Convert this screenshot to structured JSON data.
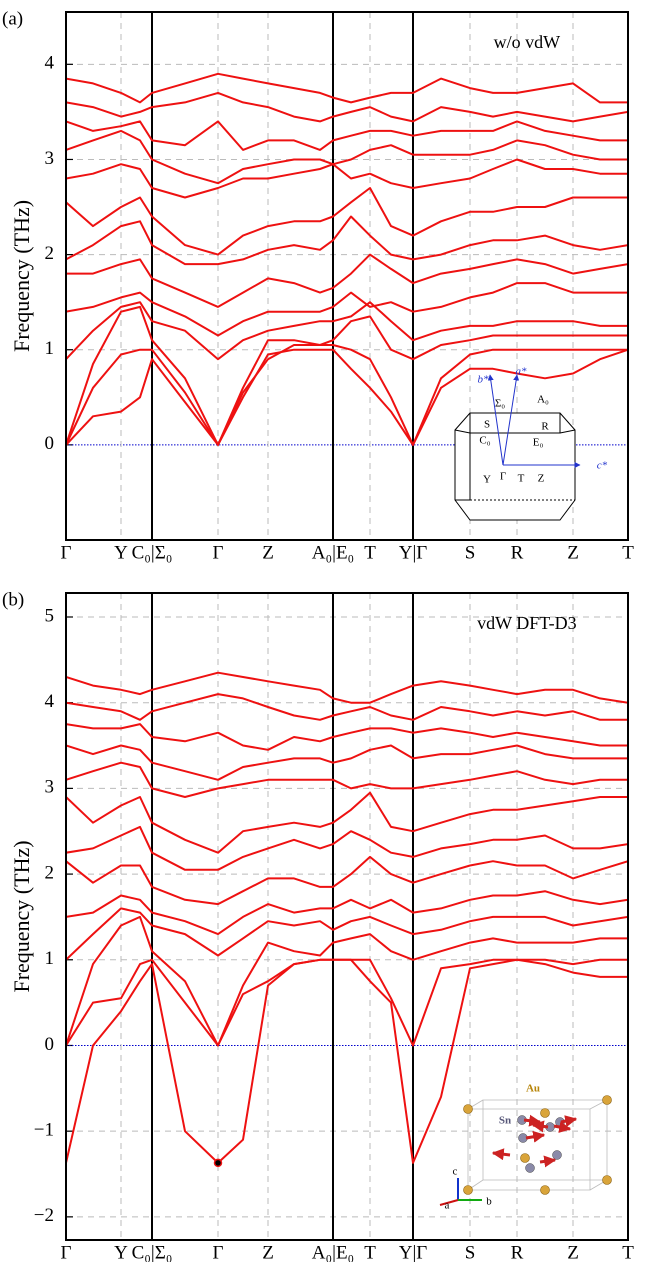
{
  "chart_data": [
    {
      "type": "line",
      "label": "(a)",
      "annotation": "w/o vdW",
      "ylabel": "Frequency (THz)",
      "color": "#ee1111",
      "zero_line_color": "#0000cc",
      "grid": true,
      "x": [
        0,
        27,
        55,
        74,
        86,
        119,
        152,
        177,
        202,
        228,
        254,
        267,
        285,
        304,
        325,
        347,
        375,
        404,
        427,
        451,
        479,
        507,
        534,
        562
      ],
      "xlim": [
        0,
        562
      ],
      "xticks": [
        {
          "value": 0,
          "label": "Γ"
        },
        {
          "value": 55,
          "label": "Y"
        },
        {
          "value": 86,
          "label": "C₀|Σ₀"
        },
        {
          "value": 152,
          "label": "Γ"
        },
        {
          "value": 202,
          "label": "Z"
        },
        {
          "value": 267,
          "label": "A₀|E₀"
        },
        {
          "value": 304,
          "label": "T"
        },
        {
          "value": 347,
          "label": "Y|Γ"
        },
        {
          "value": 404,
          "label": "S"
        },
        {
          "value": 451,
          "label": "R"
        },
        {
          "value": 507,
          "label": "Z"
        },
        {
          "value": 562,
          "label": "T"
        }
      ],
      "ylim": [
        -1,
        4.55
      ],
      "yticks": [
        0,
        1,
        2,
        3,
        4
      ],
      "series": [
        {
          "values": [
            0,
            0.3,
            0.35,
            0.5,
            0.9,
            0.45,
            0,
            0.5,
            0.95,
            1.0,
            1.0,
            1.0,
            0.8,
            0.6,
            0.35,
            0,
            0.6,
            0.8,
            0.8,
            0.75,
            0.7,
            0.75,
            0.9,
            1.0
          ]
        },
        {
          "values": [
            0,
            0.6,
            0.95,
            1.0,
            1.0,
            0.55,
            0,
            0.55,
            0.9,
            1.05,
            1.05,
            1.05,
            1.0,
            0.9,
            0.5,
            0,
            0.7,
            0.95,
            1.0,
            1.0,
            1.0,
            1.0,
            1.0,
            1.0
          ]
        },
        {
          "values": [
            0,
            0.85,
            1.4,
            1.45,
            1.1,
            0.7,
            0,
            0.6,
            1.1,
            1.1,
            1.05,
            1.1,
            1.3,
            1.35,
            1.0,
            0.9,
            1.05,
            1.1,
            1.15,
            1.15,
            1.15,
            1.15,
            1.15,
            1.15
          ]
        },
        {
          "values": [
            0.9,
            1.2,
            1.45,
            1.5,
            1.3,
            1.2,
            0.9,
            1.1,
            1.2,
            1.25,
            1.3,
            1.3,
            1.35,
            1.5,
            1.3,
            1.1,
            1.2,
            1.25,
            1.25,
            1.3,
            1.3,
            1.3,
            1.25,
            1.25
          ]
        },
        {
          "values": [
            1.4,
            1.45,
            1.55,
            1.6,
            1.5,
            1.35,
            1.15,
            1.3,
            1.4,
            1.4,
            1.4,
            1.45,
            1.6,
            1.45,
            1.5,
            1.4,
            1.45,
            1.55,
            1.6,
            1.7,
            1.7,
            1.6,
            1.6,
            1.6
          ]
        },
        {
          "values": [
            1.8,
            1.8,
            1.9,
            1.95,
            1.75,
            1.6,
            1.45,
            1.6,
            1.75,
            1.7,
            1.6,
            1.65,
            1.8,
            2.0,
            1.85,
            1.7,
            1.8,
            1.85,
            1.9,
            1.95,
            1.9,
            1.8,
            1.85,
            1.9
          ]
        },
        {
          "values": [
            1.95,
            2.1,
            2.3,
            2.35,
            2.1,
            1.9,
            1.9,
            1.95,
            2.05,
            2.1,
            2.05,
            2.15,
            2.4,
            2.2,
            2.0,
            1.95,
            2.0,
            2.1,
            2.15,
            2.15,
            2.2,
            2.1,
            2.05,
            2.1
          ]
        },
        {
          "values": [
            2.55,
            2.3,
            2.5,
            2.6,
            2.4,
            2.1,
            2.0,
            2.2,
            2.3,
            2.35,
            2.35,
            2.4,
            2.55,
            2.7,
            2.3,
            2.2,
            2.35,
            2.45,
            2.45,
            2.5,
            2.5,
            2.6,
            2.6,
            2.6
          ]
        },
        {
          "values": [
            2.8,
            2.85,
            2.95,
            2.9,
            2.7,
            2.6,
            2.7,
            2.8,
            2.8,
            2.85,
            2.9,
            2.95,
            2.8,
            2.85,
            2.75,
            2.7,
            2.75,
            2.8,
            2.9,
            3.0,
            2.9,
            2.9,
            2.85,
            2.85
          ]
        },
        {
          "values": [
            3.1,
            3.2,
            3.3,
            3.2,
            3.0,
            2.85,
            2.75,
            2.9,
            2.95,
            3.0,
            3.0,
            2.95,
            3.0,
            3.1,
            3.15,
            3.05,
            3.05,
            3.05,
            3.1,
            3.2,
            3.15,
            3.05,
            3.0,
            3.0
          ]
        },
        {
          "values": [
            3.4,
            3.3,
            3.35,
            3.4,
            3.2,
            3.15,
            3.4,
            3.1,
            3.2,
            3.2,
            3.1,
            3.2,
            3.25,
            3.3,
            3.3,
            3.25,
            3.3,
            3.3,
            3.3,
            3.4,
            3.3,
            3.25,
            3.2,
            3.2
          ]
        },
        {
          "values": [
            3.6,
            3.55,
            3.45,
            3.5,
            3.55,
            3.6,
            3.7,
            3.6,
            3.55,
            3.45,
            3.4,
            3.45,
            3.5,
            3.55,
            3.45,
            3.4,
            3.55,
            3.5,
            3.45,
            3.5,
            3.45,
            3.4,
            3.45,
            3.5
          ]
        },
        {
          "values": [
            3.85,
            3.8,
            3.7,
            3.6,
            3.7,
            3.8,
            3.9,
            3.85,
            3.8,
            3.75,
            3.7,
            3.65,
            3.6,
            3.65,
            3.7,
            3.7,
            3.85,
            3.75,
            3.7,
            3.7,
            3.75,
            3.8,
            3.6,
            3.6
          ]
        }
      ],
      "inset_labels": [
        "b*",
        "a*",
        "Σ₀",
        "A₀",
        "S",
        "R",
        "C₀",
        "E₀",
        "Γ",
        "Y",
        "T",
        "Z",
        "c*"
      ]
    },
    {
      "type": "line",
      "label": "(b)",
      "annotation": "vdW DFT-D3",
      "ylabel": "Frequency (THz)",
      "color": "#ee1111",
      "zero_line_color": "#0000cc",
      "grid": true,
      "x": [
        0,
        27,
        55,
        74,
        86,
        119,
        152,
        177,
        202,
        228,
        254,
        267,
        285,
        304,
        325,
        347,
        375,
        404,
        427,
        451,
        479,
        507,
        534,
        562
      ],
      "xlim": [
        0,
        562
      ],
      "xticks": [
        {
          "value": 0,
          "label": "Γ"
        },
        {
          "value": 55,
          "label": "Y"
        },
        {
          "value": 86,
          "label": "C₀|Σ₀"
        },
        {
          "value": 152,
          "label": "Γ"
        },
        {
          "value": 202,
          "label": "Z"
        },
        {
          "value": 267,
          "label": "A₀|E₀"
        },
        {
          "value": 304,
          "label": "T"
        },
        {
          "value": 347,
          "label": "Y|Γ"
        },
        {
          "value": 404,
          "label": "S"
        },
        {
          "value": 451,
          "label": "R"
        },
        {
          "value": 507,
          "label": "Z"
        },
        {
          "value": 562,
          "label": "T"
        }
      ],
      "ylim": [
        -2.27,
        5.28
      ],
      "yticks": [
        {
          "value": -2,
          "label": "−2"
        },
        {
          "value": -1,
          "label": "−1"
        },
        0,
        1,
        2,
        3,
        4,
        5
      ],
      "series": [
        {
          "values": [
            -1.37,
            0.0,
            0.4,
            0.75,
            0.95,
            -1.0,
            -1.37,
            -1.1,
            0.7,
            0.95,
            1.0,
            1.0,
            1.0,
            0.75,
            0.5,
            -1.37,
            -0.6,
            0.9,
            0.95,
            1.0,
            0.95,
            0.85,
            0.8,
            0.8
          ]
        },
        {
          "values": [
            0,
            0.5,
            0.55,
            0.95,
            1.0,
            0.5,
            0,
            0.6,
            0.75,
            0.95,
            1.0,
            1.0,
            1.0,
            1.0,
            0.55,
            0,
            0.9,
            0.95,
            1.0,
            1.0,
            1.0,
            0.95,
            1.0,
            1.0
          ]
        },
        {
          "values": [
            0,
            0.95,
            1.4,
            1.5,
            1.1,
            0.75,
            0,
            0.7,
            1.2,
            1.1,
            1.05,
            1.2,
            1.25,
            1.3,
            1.1,
            1.0,
            1.1,
            1.2,
            1.25,
            1.2,
            1.2,
            1.2,
            1.25,
            1.25
          ]
        },
        {
          "values": [
            1.0,
            1.3,
            1.6,
            1.55,
            1.4,
            1.3,
            1.05,
            1.25,
            1.45,
            1.4,
            1.45,
            1.35,
            1.45,
            1.5,
            1.4,
            1.3,
            1.35,
            1.45,
            1.5,
            1.5,
            1.5,
            1.4,
            1.45,
            1.5
          ]
        },
        {
          "values": [
            1.5,
            1.55,
            1.75,
            1.7,
            1.55,
            1.45,
            1.3,
            1.5,
            1.65,
            1.55,
            1.6,
            1.6,
            1.7,
            1.6,
            1.7,
            1.55,
            1.6,
            1.7,
            1.75,
            1.75,
            1.8,
            1.7,
            1.65,
            1.7
          ]
        },
        {
          "values": [
            2.15,
            1.9,
            2.1,
            2.1,
            1.85,
            1.7,
            1.65,
            1.8,
            1.95,
            1.95,
            1.85,
            1.85,
            2.0,
            2.2,
            2.0,
            1.9,
            2.0,
            2.1,
            2.15,
            2.1,
            2.1,
            1.95,
            2.05,
            2.15
          ]
        },
        {
          "values": [
            2.25,
            2.3,
            2.45,
            2.55,
            2.25,
            2.05,
            2.05,
            2.2,
            2.3,
            2.4,
            2.3,
            2.35,
            2.5,
            2.4,
            2.25,
            2.2,
            2.3,
            2.35,
            2.4,
            2.4,
            2.45,
            2.3,
            2.3,
            2.35
          ]
        },
        {
          "values": [
            2.9,
            2.6,
            2.8,
            2.9,
            2.6,
            2.4,
            2.25,
            2.5,
            2.55,
            2.6,
            2.55,
            2.6,
            2.75,
            2.95,
            2.55,
            2.5,
            2.6,
            2.7,
            2.75,
            2.75,
            2.8,
            2.85,
            2.9,
            2.9
          ]
        },
        {
          "values": [
            3.1,
            3.2,
            3.3,
            3.25,
            3.0,
            2.9,
            3.0,
            3.05,
            3.1,
            3.1,
            3.1,
            3.1,
            3.0,
            3.05,
            3.0,
            3.0,
            3.05,
            3.1,
            3.15,
            3.2,
            3.1,
            3.05,
            3.1,
            3.1
          ]
        },
        {
          "values": [
            3.5,
            3.4,
            3.5,
            3.45,
            3.3,
            3.2,
            3.1,
            3.25,
            3.3,
            3.35,
            3.35,
            3.3,
            3.35,
            3.45,
            3.5,
            3.35,
            3.4,
            3.4,
            3.45,
            3.5,
            3.4,
            3.35,
            3.35,
            3.35
          ]
        },
        {
          "values": [
            3.75,
            3.7,
            3.7,
            3.75,
            3.6,
            3.55,
            3.65,
            3.5,
            3.45,
            3.6,
            3.55,
            3.6,
            3.65,
            3.7,
            3.7,
            3.65,
            3.7,
            3.65,
            3.6,
            3.65,
            3.6,
            3.55,
            3.5,
            3.5
          ]
        },
        {
          "values": [
            4.0,
            3.95,
            3.9,
            3.8,
            3.9,
            4.0,
            4.1,
            4.05,
            3.95,
            3.85,
            3.8,
            3.85,
            3.9,
            3.95,
            3.85,
            3.8,
            3.95,
            3.9,
            3.85,
            3.9,
            3.85,
            3.9,
            3.8,
            3.8
          ]
        },
        {
          "values": [
            4.3,
            4.2,
            4.15,
            4.1,
            4.15,
            4.25,
            4.35,
            4.3,
            4.25,
            4.2,
            4.15,
            4.05,
            4.0,
            4.0,
            4.1,
            4.2,
            4.25,
            4.2,
            4.15,
            4.1,
            4.15,
            4.15,
            4.05,
            4.0
          ]
        }
      ],
      "inset_labels": [
        "Au",
        "Sn",
        "c",
        "a",
        "b"
      ]
    }
  ]
}
